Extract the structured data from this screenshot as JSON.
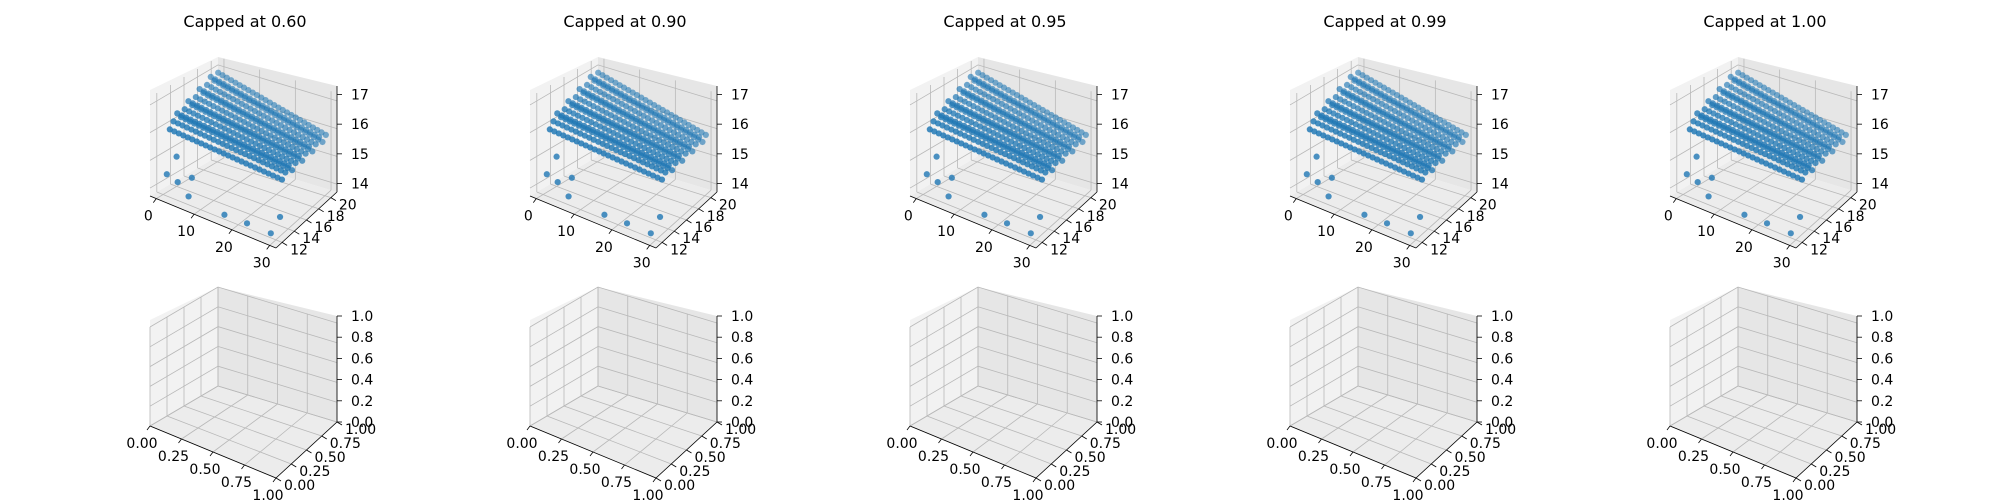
{
  "chart_data": [
    {
      "type": "scatter",
      "title": "Capped at 0.60",
      "x_ticks": [
        "0",
        "10",
        "20",
        "30"
      ],
      "y_ticks": [
        "12",
        "14",
        "16",
        "18",
        "20"
      ],
      "z_ticks": [
        "14",
        "15",
        "16",
        "17"
      ],
      "xlim": [
        0,
        32
      ],
      "ylim": [
        11,
        20.5
      ],
      "zlim": [
        13.7,
        17.2
      ]
    },
    {
      "type": "scatter",
      "title": "Capped at 0.90",
      "x_ticks": [
        "0",
        "10",
        "20",
        "30"
      ],
      "y_ticks": [
        "12",
        "14",
        "16",
        "18",
        "20"
      ],
      "z_ticks": [
        "14",
        "15",
        "16",
        "17"
      ],
      "xlim": [
        0,
        32
      ],
      "ylim": [
        11,
        20.5
      ],
      "zlim": [
        13.7,
        17.2
      ]
    },
    {
      "type": "scatter",
      "title": "Capped at 0.95",
      "x_ticks": [
        "0",
        "10",
        "20",
        "30"
      ],
      "y_ticks": [
        "12",
        "14",
        "16",
        "18",
        "20"
      ],
      "z_ticks": [
        "14",
        "15",
        "16",
        "17"
      ],
      "xlim": [
        0,
        32
      ],
      "ylim": [
        11,
        20.5
      ],
      "zlim": [
        13.7,
        17.2
      ]
    },
    {
      "type": "scatter",
      "title": "Capped at 0.99",
      "x_ticks": [
        "0",
        "10",
        "20",
        "30"
      ],
      "y_ticks": [
        "12",
        "14",
        "16",
        "18",
        "20"
      ],
      "z_ticks": [
        "14",
        "15",
        "16",
        "17"
      ],
      "xlim": [
        0,
        32
      ],
      "ylim": [
        11,
        20.5
      ],
      "zlim": [
        13.7,
        17.2
      ]
    },
    {
      "type": "scatter",
      "title": "Capped at 1.00",
      "x_ticks": [
        "0",
        "10",
        "20",
        "30"
      ],
      "y_ticks": [
        "12",
        "14",
        "16",
        "18",
        "20"
      ],
      "z_ticks": [
        "14",
        "15",
        "16",
        "17"
      ],
      "xlim": [
        0,
        32
      ],
      "ylim": [
        11,
        20.5
      ],
      "zlim": [
        13.7,
        17.2
      ]
    },
    {
      "type": "scatter",
      "title": "",
      "empty": true,
      "x_ticks": [
        "0.00",
        "0.25",
        "0.50",
        "0.75",
        "1.00"
      ],
      "y_ticks": [
        "0.00",
        "0.25",
        "0.50",
        "0.75",
        "1.00"
      ],
      "z_ticks": [
        "0.0",
        "0.2",
        "0.4",
        "0.6",
        "0.8",
        "1.0"
      ],
      "xlim": [
        0,
        1
      ],
      "ylim": [
        0,
        1
      ],
      "zlim": [
        0,
        1
      ]
    },
    {
      "type": "scatter",
      "title": "",
      "empty": true,
      "x_ticks": [
        "0.00",
        "0.25",
        "0.50",
        "0.75",
        "1.00"
      ],
      "y_ticks": [
        "0.00",
        "0.25",
        "0.50",
        "0.75",
        "1.00"
      ],
      "z_ticks": [
        "0.0",
        "0.2",
        "0.4",
        "0.6",
        "0.8",
        "1.0"
      ],
      "xlim": [
        0,
        1
      ],
      "ylim": [
        0,
        1
      ],
      "zlim": [
        0,
        1
      ]
    },
    {
      "type": "scatter",
      "title": "",
      "empty": true,
      "x_ticks": [
        "0.00",
        "0.25",
        "0.50",
        "0.75",
        "1.00"
      ],
      "y_ticks": [
        "0.00",
        "0.25",
        "0.50",
        "0.75",
        "1.00"
      ],
      "z_ticks": [
        "0.0",
        "0.2",
        "0.4",
        "0.6",
        "0.8",
        "1.0"
      ],
      "xlim": [
        0,
        1
      ],
      "ylim": [
        0,
        1
      ],
      "zlim": [
        0,
        1
      ]
    },
    {
      "type": "scatter",
      "title": "",
      "empty": true,
      "x_ticks": [
        "0.00",
        "0.25",
        "0.50",
        "0.75",
        "1.00"
      ],
      "y_ticks": [
        "0.00",
        "0.25",
        "0.50",
        "0.75",
        "1.00"
      ],
      "z_ticks": [
        "0.0",
        "0.2",
        "0.4",
        "0.6",
        "0.8",
        "1.0"
      ],
      "xlim": [
        0,
        1
      ],
      "ylim": [
        0,
        1
      ],
      "zlim": [
        0,
        1
      ]
    },
    {
      "type": "scatter",
      "title": "",
      "empty": true,
      "x_ticks": [
        "0.00",
        "0.25",
        "0.50",
        "0.75",
        "1.00"
      ],
      "y_ticks": [
        "0.00",
        "0.25",
        "0.50",
        "0.75",
        "1.00"
      ],
      "z_ticks": [
        "0.0",
        "0.2",
        "0.4",
        "0.6",
        "0.8",
        "1.0"
      ],
      "xlim": [
        0,
        1
      ],
      "ylim": [
        0,
        1
      ],
      "zlim": [
        0,
        1
      ]
    }
  ],
  "point_color": "#1f77b4"
}
